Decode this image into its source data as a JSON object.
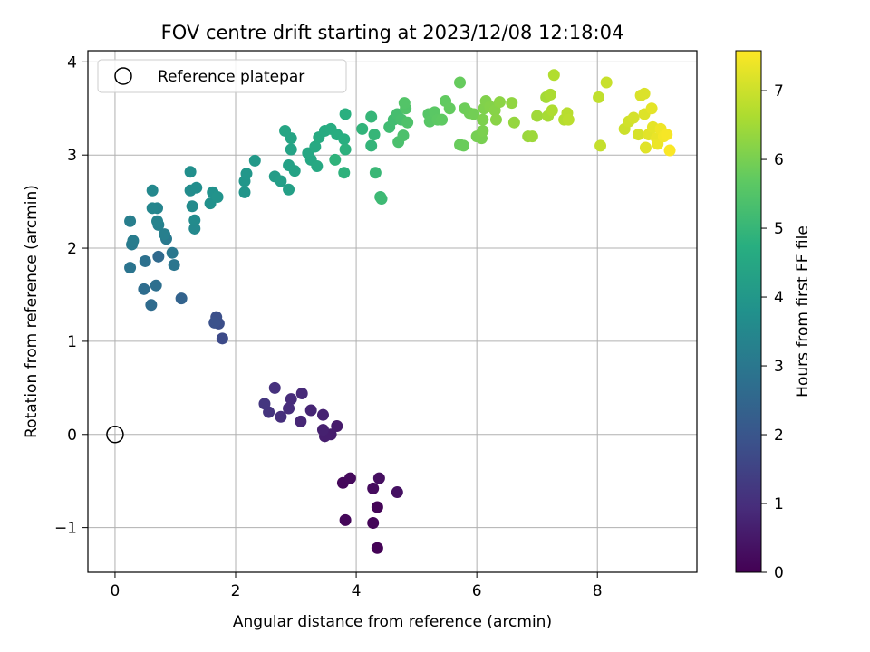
{
  "chart_data": {
    "type": "scatter",
    "title": "FOV centre drift starting at 2023/12/08 12:18:04",
    "xlabel": "Angular distance from reference (arcmin)",
    "ylabel": "Rotation from reference (arcmin)",
    "xlim": [
      -0.45,
      9.65
    ],
    "ylim": [
      -1.48,
      4.12
    ],
    "xticks": [
      0,
      2,
      4,
      6,
      8
    ],
    "yticks": [
      -1,
      0,
      1,
      2,
      3,
      4
    ],
    "xtick_labels": [
      "0",
      "2",
      "4",
      "6",
      "8"
    ],
    "ytick_labels": [
      "−1",
      "0",
      "1",
      "2",
      "3",
      "4"
    ],
    "grid": true,
    "legend": {
      "position": "top-left",
      "label": "Reference platepar"
    },
    "reference_point": {
      "x": 0,
      "y": 0
    },
    "colorbar": {
      "label": "Hours from first FF file",
      "colormap": "viridis",
      "range": [
        0,
        7.58
      ],
      "ticks": [
        0,
        1,
        2,
        3,
        4,
        5,
        6,
        7
      ],
      "tick_labels": [
        "0",
        "1",
        "2",
        "3",
        "4",
        "5",
        "6",
        "7"
      ]
    },
    "points": [
      [
        4.35,
        -1.22,
        0.05
      ],
      [
        4.35,
        -0.78,
        0.08
      ],
      [
        4.28,
        -0.95,
        0.1
      ],
      [
        3.82,
        -0.92,
        0.12
      ],
      [
        3.78,
        -0.52,
        0.16
      ],
      [
        3.9,
        -0.47,
        0.2
      ],
      [
        4.28,
        -0.58,
        0.24
      ],
      [
        4.38,
        -0.47,
        0.3
      ],
      [
        4.68,
        -0.62,
        0.35
      ],
      [
        3.68,
        0.09,
        0.55
      ],
      [
        3.58,
        0.0,
        0.6
      ],
      [
        3.48,
        -0.02,
        0.63
      ],
      [
        3.45,
        0.05,
        0.68
      ],
      [
        3.45,
        0.21,
        0.72
      ],
      [
        3.25,
        0.26,
        0.78
      ],
      [
        3.08,
        0.14,
        0.82
      ],
      [
        3.1,
        0.44,
        0.88
      ],
      [
        2.92,
        0.38,
        0.92
      ],
      [
        2.88,
        0.28,
        0.96
      ],
      [
        2.75,
        0.19,
        1.0
      ],
      [
        2.65,
        0.5,
        1.06
      ],
      [
        2.55,
        0.24,
        1.12
      ],
      [
        2.48,
        0.33,
        1.18
      ],
      [
        1.78,
        1.03,
        1.7
      ],
      [
        1.72,
        1.19,
        1.78
      ],
      [
        1.68,
        1.26,
        1.84
      ],
      [
        1.65,
        1.2,
        1.9
      ],
      [
        1.1,
        1.46,
        2.4
      ],
      [
        0.72,
        1.91,
        2.6
      ],
      [
        0.6,
        1.39,
        2.65
      ],
      [
        0.48,
        1.56,
        2.7
      ],
      [
        0.68,
        1.6,
        2.75
      ],
      [
        0.5,
        1.86,
        2.8
      ],
      [
        0.25,
        1.79,
        2.9
      ],
      [
        0.98,
        1.82,
        2.95
      ],
      [
        0.95,
        1.95,
        3.0
      ],
      [
        0.85,
        2.1,
        3.05
      ],
      [
        0.28,
        2.04,
        3.1
      ],
      [
        0.3,
        2.08,
        3.15
      ],
      [
        0.25,
        2.29,
        3.2
      ],
      [
        0.82,
        2.15,
        3.25
      ],
      [
        0.72,
        2.25,
        3.3
      ],
      [
        0.7,
        2.29,
        3.35
      ],
      [
        0.7,
        2.43,
        3.4
      ],
      [
        0.62,
        2.43,
        3.45
      ],
      [
        0.62,
        2.62,
        3.5
      ],
      [
        1.32,
        2.21,
        3.55
      ],
      [
        1.32,
        2.3,
        3.6
      ],
      [
        1.28,
        2.45,
        3.62
      ],
      [
        1.25,
        2.62,
        3.65
      ],
      [
        1.35,
        2.65,
        3.68
      ],
      [
        1.25,
        2.82,
        3.72
      ],
      [
        1.58,
        2.48,
        3.78
      ],
      [
        1.62,
        2.6,
        3.82
      ],
      [
        1.7,
        2.55,
        3.86
      ],
      [
        2.15,
        2.6,
        3.92
      ],
      [
        2.15,
        2.72,
        3.95
      ],
      [
        2.18,
        2.8,
        3.98
      ],
      [
        2.32,
        2.94,
        4.05
      ],
      [
        2.65,
        2.77,
        4.15
      ],
      [
        2.75,
        2.72,
        4.2
      ],
      [
        2.88,
        2.63,
        4.25
      ],
      [
        2.88,
        2.89,
        4.3
      ],
      [
        2.98,
        2.83,
        4.35
      ],
      [
        2.92,
        3.06,
        4.38
      ],
      [
        2.92,
        3.18,
        4.42
      ],
      [
        2.82,
        3.26,
        4.45
      ],
      [
        3.2,
        3.02,
        4.5
      ],
      [
        3.25,
        2.95,
        4.52
      ],
      [
        3.35,
        2.88,
        4.55
      ],
      [
        3.32,
        3.09,
        4.58
      ],
      [
        3.38,
        3.19,
        4.62
      ],
      [
        3.48,
        3.26,
        4.65
      ],
      [
        3.58,
        3.28,
        4.68
      ],
      [
        3.68,
        3.22,
        4.72
      ],
      [
        3.8,
        3.17,
        4.75
      ],
      [
        3.82,
        3.44,
        4.78
      ],
      [
        3.82,
        3.06,
        4.82
      ],
      [
        3.8,
        2.81,
        4.85
      ],
      [
        3.65,
        2.95,
        4.88
      ],
      [
        4.1,
        3.28,
        4.92
      ],
      [
        4.25,
        3.1,
        4.95
      ],
      [
        4.3,
        3.22,
        4.98
      ],
      [
        4.25,
        3.41,
        5.0
      ],
      [
        4.32,
        2.81,
        5.05
      ],
      [
        4.4,
        2.55,
        5.1
      ],
      [
        4.42,
        2.53,
        5.12
      ],
      [
        4.55,
        3.3,
        5.18
      ],
      [
        4.62,
        3.38,
        5.22
      ],
      [
        4.68,
        3.44,
        5.26
      ],
      [
        4.75,
        3.38,
        5.3
      ],
      [
        4.7,
        3.14,
        5.35
      ],
      [
        4.78,
        3.21,
        5.38
      ],
      [
        4.85,
        3.35,
        5.42
      ],
      [
        4.82,
        3.5,
        5.46
      ],
      [
        4.8,
        3.56,
        5.5
      ],
      [
        5.2,
        3.44,
        5.55
      ],
      [
        5.22,
        3.36,
        5.58
      ],
      [
        5.3,
        3.46,
        5.62
      ],
      [
        5.35,
        3.38,
        5.65
      ],
      [
        5.42,
        3.38,
        5.68
      ],
      [
        5.48,
        3.58,
        5.72
      ],
      [
        5.55,
        3.5,
        5.75
      ],
      [
        5.72,
        3.78,
        5.78
      ],
      [
        5.72,
        3.11,
        5.8
      ],
      [
        5.78,
        3.1,
        5.82
      ],
      [
        5.8,
        3.5,
        5.86
      ],
      [
        5.88,
        3.45,
        5.9
      ],
      [
        5.95,
        3.44,
        5.94
      ],
      [
        6.0,
        3.2,
        5.97
      ],
      [
        6.08,
        3.18,
        6.0
      ],
      [
        6.1,
        3.26,
        6.03
      ],
      [
        6.1,
        3.38,
        6.06
      ],
      [
        6.12,
        3.5,
        6.08
      ],
      [
        6.15,
        3.58,
        6.1
      ],
      [
        6.22,
        3.52,
        6.14
      ],
      [
        6.3,
        3.48,
        6.18
      ],
      [
        6.32,
        3.38,
        6.2
      ],
      [
        6.38,
        3.57,
        6.24
      ],
      [
        6.58,
        3.56,
        6.3
      ],
      [
        6.62,
        3.35,
        6.34
      ],
      [
        6.85,
        3.2,
        6.4
      ],
      [
        6.92,
        3.2,
        6.44
      ],
      [
        7.0,
        3.42,
        6.48
      ],
      [
        7.15,
        3.62,
        6.52
      ],
      [
        7.18,
        3.42,
        6.56
      ],
      [
        7.22,
        3.65,
        6.6
      ],
      [
        7.25,
        3.48,
        6.64
      ],
      [
        7.28,
        3.86,
        6.68
      ],
      [
        7.45,
        3.38,
        6.72
      ],
      [
        7.5,
        3.45,
        6.76
      ],
      [
        7.52,
        3.38,
        6.8
      ],
      [
        8.02,
        3.62,
        6.86
      ],
      [
        8.05,
        3.1,
        6.9
      ],
      [
        8.15,
        3.78,
        6.95
      ],
      [
        8.45,
        3.28,
        7.0
      ],
      [
        8.52,
        3.36,
        7.05
      ],
      [
        8.6,
        3.4,
        7.1
      ],
      [
        8.68,
        3.22,
        7.12
      ],
      [
        8.72,
        3.64,
        7.15
      ],
      [
        8.78,
        3.66,
        7.18
      ],
      [
        8.78,
        3.44,
        7.2
      ],
      [
        8.8,
        3.08,
        7.24
      ],
      [
        8.85,
        3.22,
        7.26
      ],
      [
        8.9,
        3.5,
        7.28
      ],
      [
        8.92,
        3.3,
        7.3
      ],
      [
        8.98,
        3.18,
        7.34
      ],
      [
        9.0,
        3.12,
        7.38
      ],
      [
        9.05,
        3.28,
        7.42
      ],
      [
        9.1,
        3.2,
        7.46
      ],
      [
        9.15,
        3.22,
        7.5
      ],
      [
        9.2,
        3.05,
        7.55
      ]
    ]
  }
}
